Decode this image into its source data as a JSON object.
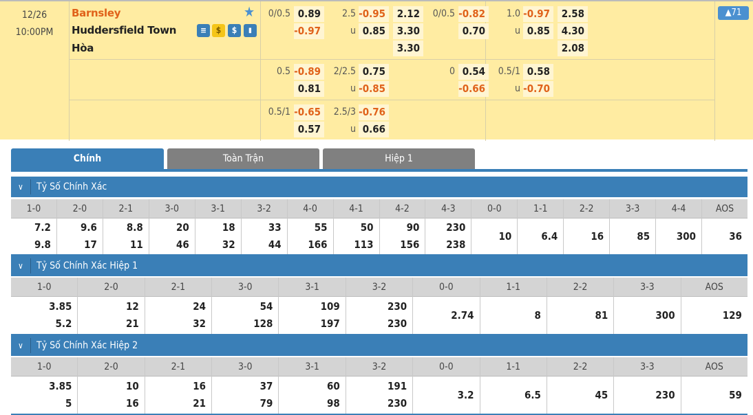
{
  "match": {
    "date": "12/26",
    "time": "10:00PM",
    "home": "Barnsley",
    "away": "Huddersfield Town",
    "draw": "Hòa",
    "expand_badge": "▲71",
    "icons": [
      "schedule-icon",
      "coin-icon",
      "dollar-icon",
      "stats-icon"
    ]
  },
  "odds_rows": [
    {
      "block1": {
        "hdp": "0/0.5",
        "hdp_home": "0.89",
        "hdp_away": "-0.97",
        "ou": "2.5",
        "ou_under_label": "u",
        "ou_over": "-0.95",
        "ou_under": "0.85",
        "x12": [
          "2.12",
          "3.30",
          "3.30"
        ]
      },
      "block2": {
        "hdp": "0/0.5",
        "hdp_home": "-0.82",
        "hdp_away": "0.70",
        "ou": "1.0",
        "ou_under_label": "u",
        "ou_over": "-0.97",
        "ou_under": "0.85",
        "x12": [
          "2.58",
          "4.30",
          "2.08"
        ]
      }
    },
    {
      "block1": {
        "hdp": "0.5",
        "hdp_home": "-0.89",
        "hdp_away": "0.81",
        "ou": "2/2.5",
        "ou_under_label": "u",
        "ou_over": "0.75",
        "ou_under": "-0.85"
      },
      "block2": {
        "hdp": "0",
        "hdp_home": "0.54",
        "hdp_away": "-0.66",
        "ou": "0.5/1",
        "ou_under_label": "u",
        "ou_over": "0.58",
        "ou_under": "-0.70"
      }
    },
    {
      "block1": {
        "hdp": "0.5/1",
        "hdp_home": "-0.65",
        "hdp_away": "0.57",
        "ou": "2.5/3",
        "ou_under_label": "u",
        "ou_over": "-0.76",
        "ou_under": "0.66"
      }
    }
  ],
  "colors": {
    "negative": "#e0621a",
    "accent": "#3a7fb7",
    "tab_inactive": "#808080",
    "row_bg": "#ffeca2"
  },
  "tabs": [
    {
      "label": "Chính",
      "active": true
    },
    {
      "label": "Toàn Trận",
      "active": false
    },
    {
      "label": "Hiệp 1",
      "active": false
    }
  ],
  "sections": [
    {
      "title": "Tỷ Số Chính Xác",
      "columns": [
        {
          "score": "1-0",
          "values": [
            "7.2",
            "9.8"
          ]
        },
        {
          "score": "2-0",
          "values": [
            "9.6",
            "17"
          ]
        },
        {
          "score": "2-1",
          "values": [
            "8.8",
            "11"
          ]
        },
        {
          "score": "3-0",
          "values": [
            "20",
            "46"
          ]
        },
        {
          "score": "3-1",
          "values": [
            "18",
            "32"
          ]
        },
        {
          "score": "3-2",
          "values": [
            "33",
            "44"
          ]
        },
        {
          "score": "4-0",
          "values": [
            "55",
            "166"
          ]
        },
        {
          "score": "4-1",
          "values": [
            "50",
            "113"
          ]
        },
        {
          "score": "4-2",
          "values": [
            "90",
            "156"
          ]
        },
        {
          "score": "4-3",
          "values": [
            "230",
            "238"
          ]
        },
        {
          "score": "0-0",
          "values": [
            "10"
          ]
        },
        {
          "score": "1-1",
          "values": [
            "6.4"
          ]
        },
        {
          "score": "2-2",
          "values": [
            "16"
          ]
        },
        {
          "score": "3-3",
          "values": [
            "85"
          ]
        },
        {
          "score": "4-4",
          "values": [
            "300"
          ]
        },
        {
          "score": "AOS",
          "values": [
            "36"
          ]
        }
      ]
    },
    {
      "title": "Tỷ Số Chính Xác Hiệp 1",
      "columns": [
        {
          "score": "1-0",
          "values": [
            "3.85",
            "5.2"
          ]
        },
        {
          "score": "2-0",
          "values": [
            "12",
            "21"
          ]
        },
        {
          "score": "2-1",
          "values": [
            "24",
            "32"
          ]
        },
        {
          "score": "3-0",
          "values": [
            "54",
            "128"
          ]
        },
        {
          "score": "3-1",
          "values": [
            "109",
            "197"
          ]
        },
        {
          "score": "3-2",
          "values": [
            "230",
            "230"
          ]
        },
        {
          "score": "0-0",
          "values": [
            "2.74"
          ]
        },
        {
          "score": "1-1",
          "values": [
            "8"
          ]
        },
        {
          "score": "2-2",
          "values": [
            "81"
          ]
        },
        {
          "score": "3-3",
          "values": [
            "300"
          ]
        },
        {
          "score": "AOS",
          "values": [
            "129"
          ]
        }
      ]
    },
    {
      "title": "Tỷ Số Chính Xác Hiệp 2",
      "columns": [
        {
          "score": "1-0",
          "values": [
            "3.85",
            "5"
          ]
        },
        {
          "score": "2-0",
          "values": [
            "10",
            "16"
          ]
        },
        {
          "score": "2-1",
          "values": [
            "16",
            "21"
          ]
        },
        {
          "score": "3-0",
          "values": [
            "37",
            "79"
          ]
        },
        {
          "score": "3-1",
          "values": [
            "60",
            "98"
          ]
        },
        {
          "score": "3-2",
          "values": [
            "191",
            "230"
          ]
        },
        {
          "score": "0-0",
          "values": [
            "3.2"
          ]
        },
        {
          "score": "1-1",
          "values": [
            "6.5"
          ]
        },
        {
          "score": "2-2",
          "values": [
            "45"
          ]
        },
        {
          "score": "3-3",
          "values": [
            "230"
          ]
        },
        {
          "score": "AOS",
          "values": [
            "59"
          ]
        }
      ]
    }
  ]
}
